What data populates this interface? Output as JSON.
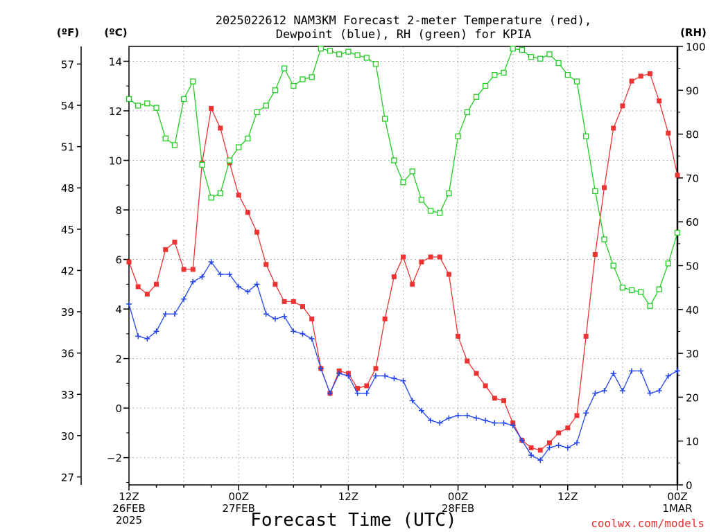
{
  "chart_data": {
    "type": "line",
    "title": "2025022612 NAM3KM Forecast 2-meter Temperature (red),",
    "title_line2": "Dewpoint (blue), RH (green) for KPIA",
    "xlabel": "Forecast Time (UTC)",
    "credit": "coolwx.com/models",
    "unit_f": "(ºF)",
    "unit_c": "(ºC)",
    "unit_rh": "(RH)",
    "x_unit": "forecast hour from 2025-02-26 12Z",
    "xlim": [
      0,
      60
    ],
    "ylim_c": [
      -3.1,
      14.6
    ],
    "ylim_rh": [
      0,
      100
    ],
    "grid": true,
    "x_ticks": [
      {
        "x": 0,
        "l1": "12Z",
        "l2": "26FEB",
        "l3": "2025"
      },
      {
        "x": 12,
        "l1": "00Z",
        "l2": "27FEB",
        "l3": ""
      },
      {
        "x": 24,
        "l1": "12Z",
        "l2": "",
        "l3": ""
      },
      {
        "x": 36,
        "l1": "00Z",
        "l2": "28FEB",
        "l3": ""
      },
      {
        "x": 48,
        "l1": "12Z",
        "l2": "",
        "l3": ""
      },
      {
        "x": 60,
        "l1": "00Z",
        "l2": "1MAR",
        "l3": ""
      }
    ],
    "y_ticks_c": [
      -2,
      0,
      2,
      4,
      6,
      8,
      10,
      12,
      14
    ],
    "y_tick_labels_c": [
      "−2",
      "0",
      "2",
      "4",
      "6",
      "8",
      "10",
      "12",
      "14"
    ],
    "y_ticks_f": [
      27,
      30,
      33,
      36,
      39,
      42,
      45,
      48,
      51,
      54,
      57
    ],
    "y_ticks_rh": [
      0,
      10,
      20,
      30,
      40,
      50,
      60,
      70,
      80,
      90,
      100
    ],
    "x": [
      0,
      1,
      2,
      3,
      4,
      5,
      6,
      7,
      8,
      9,
      10,
      11,
      12,
      13,
      14,
      15,
      16,
      17,
      18,
      19,
      20,
      21,
      22,
      23,
      24,
      25,
      26,
      27,
      28,
      29,
      30,
      31,
      32,
      33,
      34,
      35,
      36,
      37,
      38,
      39,
      40,
      41,
      42,
      43,
      44,
      45,
      46,
      47,
      48,
      49,
      50,
      51,
      52,
      53,
      54,
      55,
      56,
      57,
      58,
      59,
      60
    ],
    "series": [
      {
        "name": "2-meter Temperature",
        "unit": "C",
        "color": "#ee3333",
        "marker": "square-filled",
        "values": [
          5.9,
          4.9,
          4.6,
          5.0,
          6.4,
          6.7,
          5.6,
          5.6,
          9.9,
          12.1,
          11.3,
          9.9,
          8.6,
          7.9,
          7.1,
          5.8,
          5.0,
          4.3,
          4.3,
          4.1,
          3.6,
          1.6,
          0.6,
          1.5,
          1.4,
          0.8,
          0.9,
          1.6,
          3.6,
          5.3,
          6.1,
          5.0,
          5.9,
          6.1,
          6.1,
          5.4,
          2.9,
          1.9,
          1.4,
          0.9,
          0.4,
          0.3,
          -0.6,
          -1.3,
          -1.6,
          -1.7,
          -1.4,
          -1.0,
          -0.8,
          -0.3,
          2.9,
          6.2,
          8.9,
          11.3,
          12.2,
          13.2,
          13.4,
          13.5,
          12.4,
          11.1,
          9.4
        ]
      },
      {
        "name": "Dewpoint",
        "unit": "C",
        "color": "#2244ee",
        "marker": "plus",
        "values": [
          4.2,
          2.9,
          2.8,
          3.1,
          3.8,
          3.8,
          4.4,
          5.1,
          5.3,
          5.9,
          5.4,
          5.4,
          4.9,
          4.7,
          5.0,
          3.8,
          3.6,
          3.7,
          3.1,
          3.0,
          2.8,
          1.6,
          0.6,
          1.4,
          1.3,
          0.6,
          0.6,
          1.3,
          1.3,
          1.2,
          1.1,
          0.3,
          -0.1,
          -0.5,
          -0.6,
          -0.4,
          -0.3,
          -0.3,
          -0.4,
          -0.5,
          -0.6,
          -0.6,
          -0.7,
          -1.3,
          -1.9,
          -2.1,
          -1.6,
          -1.5,
          -1.6,
          -1.4,
          -0.2,
          0.6,
          0.7,
          1.4,
          0.7,
          1.5,
          1.5,
          0.6,
          0.7,
          1.3,
          1.5
        ]
      },
      {
        "name": "RH",
        "unit": "%",
        "color": "#22cc22",
        "marker": "square-open",
        "values": [
          88,
          86.5,
          87,
          86,
          79,
          77.5,
          88,
          92,
          73,
          65.5,
          66.5,
          74,
          77,
          79,
          85,
          86.5,
          90,
          95,
          91,
          92.5,
          93,
          99.5,
          99,
          98.2,
          98.8,
          98,
          97.4,
          96,
          83.5,
          74,
          69,
          71.5,
          65,
          62.5,
          62,
          66.5,
          79.5,
          85,
          88.5,
          91,
          93.5,
          94,
          99.5,
          99.2,
          97.6,
          97.2,
          98.2,
          96.2,
          93.5,
          92,
          79.5,
          67,
          56,
          50,
          45,
          44.4,
          44,
          40.8,
          44.6,
          50.5,
          57.5
        ]
      }
    ]
  }
}
